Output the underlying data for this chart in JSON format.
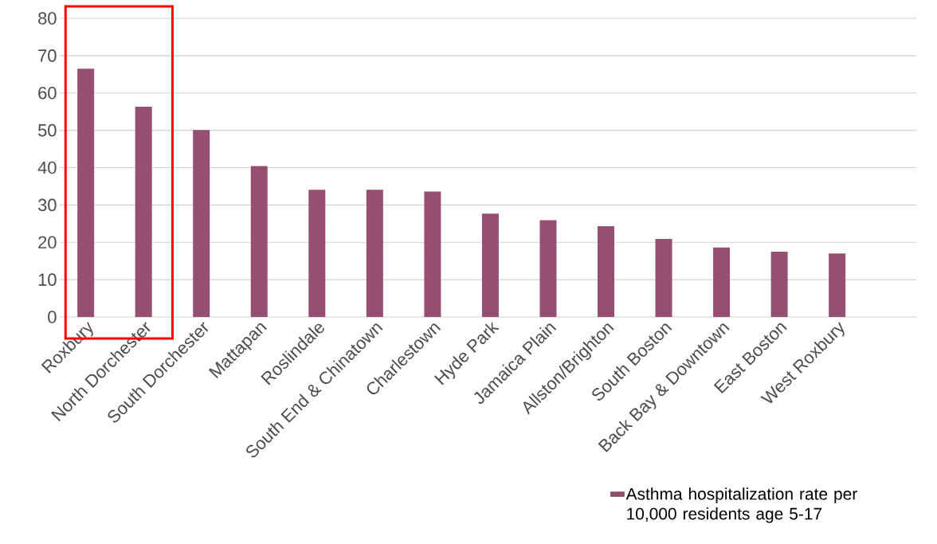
{
  "chart_data": {
    "type": "bar",
    "categories": [
      "Roxbury",
      "North Dorchester",
      "South Dorchester",
      "Mattapan",
      "Roslindale",
      "South End & Chinatown",
      "Charlestown",
      "Hyde Park",
      "Jamaica Plain",
      "Allston/Brighton",
      "South Boston",
      "Back Bay & Downtown",
      "East Boston",
      "West Roxbury"
    ],
    "series": [
      {
        "name": "Asthma hospitalization rate per 10,000 residents age 5-17",
        "color": "#954f72",
        "values": [
          66.5,
          56.3,
          50.1,
          40.4,
          34.1,
          34.1,
          33.6,
          27.7,
          25.9,
          24.3,
          20.9,
          18.6,
          17.5,
          17.0
        ]
      }
    ],
    "ylim": [
      0,
      80
    ],
    "yticks": [
      0,
      10,
      20,
      30,
      40,
      50,
      60,
      70,
      80
    ],
    "grid": "y",
    "legend": "bottom right"
  }
}
